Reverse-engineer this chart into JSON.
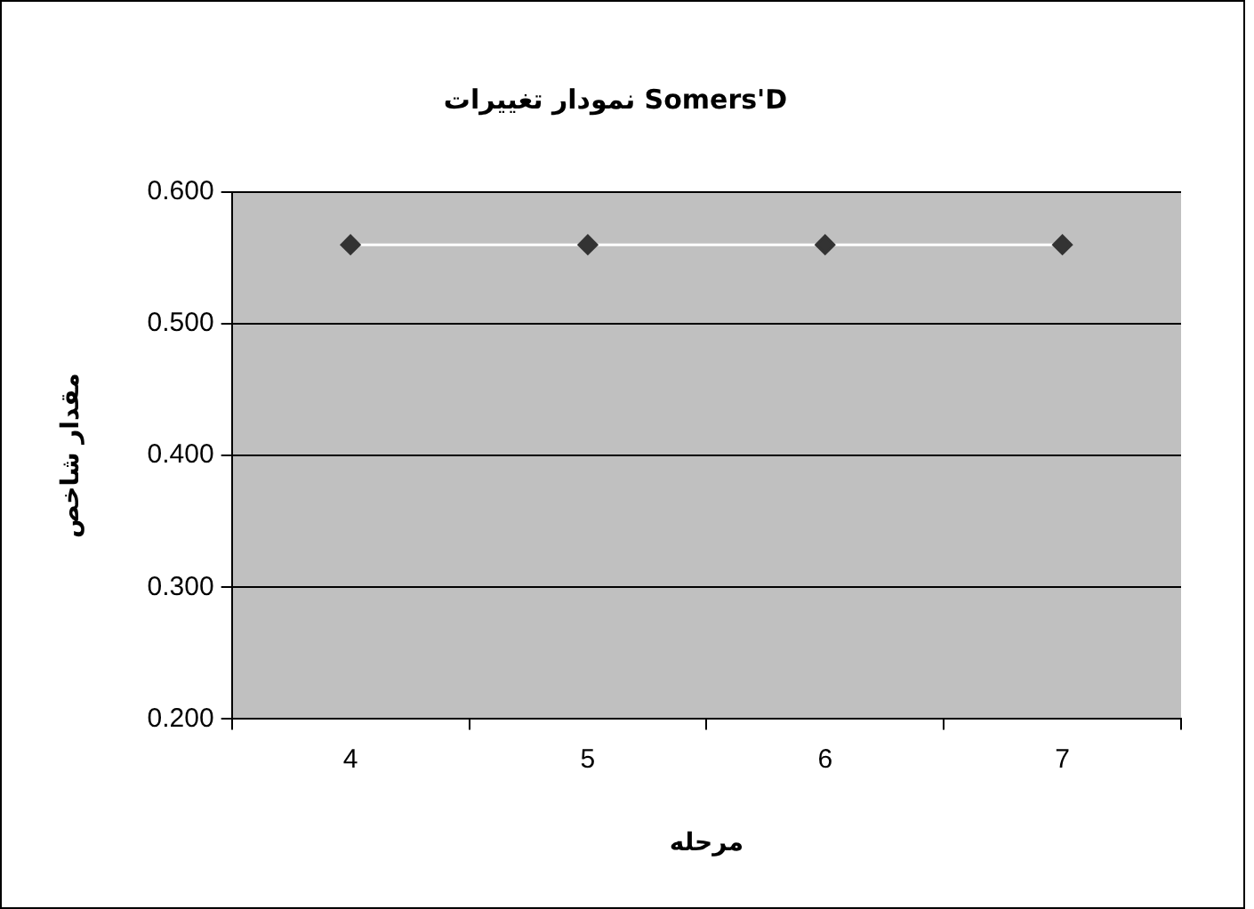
{
  "chart_data": {
    "type": "line",
    "title": "نمودار تغییرات Somers'D",
    "xlabel": "مرحله",
    "ylabel": "مقدار شاخص",
    "categories": [
      "4",
      "5",
      "6",
      "7"
    ],
    "series": [
      {
        "color": "#ffffff",
        "values": [
          0.56,
          0.56,
          0.56,
          0.56
        ]
      }
    ],
    "ylim": [
      0.2,
      0.6
    ],
    "yticks": [
      {
        "value": 0.2,
        "label": "0.200"
      },
      {
        "value": 0.3,
        "label": "0.300"
      },
      {
        "value": 0.4,
        "label": "0.400"
      },
      {
        "value": 0.5,
        "label": "0.500"
      },
      {
        "value": 0.6,
        "label": "0.600"
      }
    ],
    "grid": "y",
    "marker": "diamond",
    "line_style": "solid",
    "legend": false
  }
}
